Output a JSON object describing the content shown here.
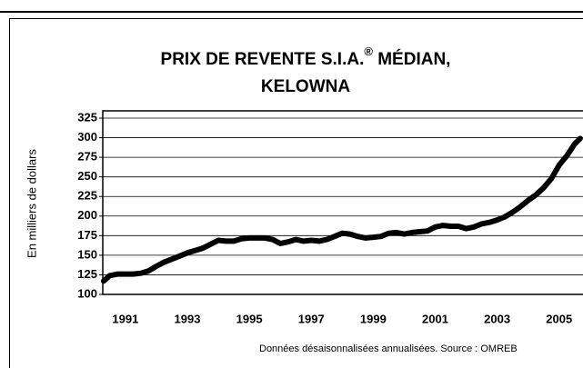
{
  "chart_data": {
    "type": "line",
    "title_parts": [
      "PRIX DE REVENTE S.I.A.",
      "®",
      " MÉDIAN,",
      "KELOWNA"
    ],
    "ylabel": "En milliers de dollars",
    "note": "Données désaisonnalisées annualisées. Source : OMREB",
    "x": [
      1990.3,
      1990.5,
      1990.75,
      1991.0,
      1991.25,
      1991.5,
      1991.75,
      1992.0,
      1992.25,
      1992.5,
      1992.75,
      1993.0,
      1993.25,
      1993.5,
      1993.75,
      1994.0,
      1994.25,
      1994.5,
      1994.75,
      1995.0,
      1995.25,
      1995.5,
      1995.75,
      1996.0,
      1996.25,
      1996.5,
      1996.75,
      1997.0,
      1997.25,
      1997.5,
      1997.75,
      1998.0,
      1998.25,
      1998.5,
      1998.75,
      1999.0,
      1999.25,
      1999.5,
      1999.75,
      2000.0,
      2000.25,
      2000.5,
      2000.75,
      2001.0,
      2001.25,
      2001.5,
      2001.75,
      2002.0,
      2002.25,
      2002.5,
      2002.75,
      2003.0,
      2003.25,
      2003.5,
      2003.75,
      2004.0,
      2004.25,
      2004.5,
      2004.75,
      2005.0,
      2005.25,
      2005.5,
      2005.68
    ],
    "series": [
      {
        "name": "Kelowna",
        "color": "#000000",
        "values": [
          117,
          124,
          126,
          126,
          126,
          127,
          130,
          136,
          141,
          145,
          149,
          153,
          156,
          159,
          164,
          169,
          168,
          168,
          171,
          172,
          172,
          172,
          170,
          165,
          167,
          170,
          168,
          169,
          168,
          170,
          174,
          178,
          177,
          174,
          172,
          173,
          174,
          178,
          179,
          177,
          179,
          180,
          181,
          186,
          188,
          187,
          187,
          184,
          186,
          190,
          192,
          195,
          199,
          205,
          212,
          220,
          227,
          236,
          248,
          265,
          277,
          292,
          299
        ]
      }
    ],
    "xlim": [
      1990.27,
      2005.77
    ],
    "xticks": [
      1991,
      1993,
      1995,
      1997,
      1999,
      2001,
      2003,
      2005
    ],
    "ylim": [
      100,
      325
    ],
    "yticks": [
      100,
      125,
      150,
      175,
      200,
      225,
      250,
      275,
      300,
      325
    ],
    "grid": true
  }
}
